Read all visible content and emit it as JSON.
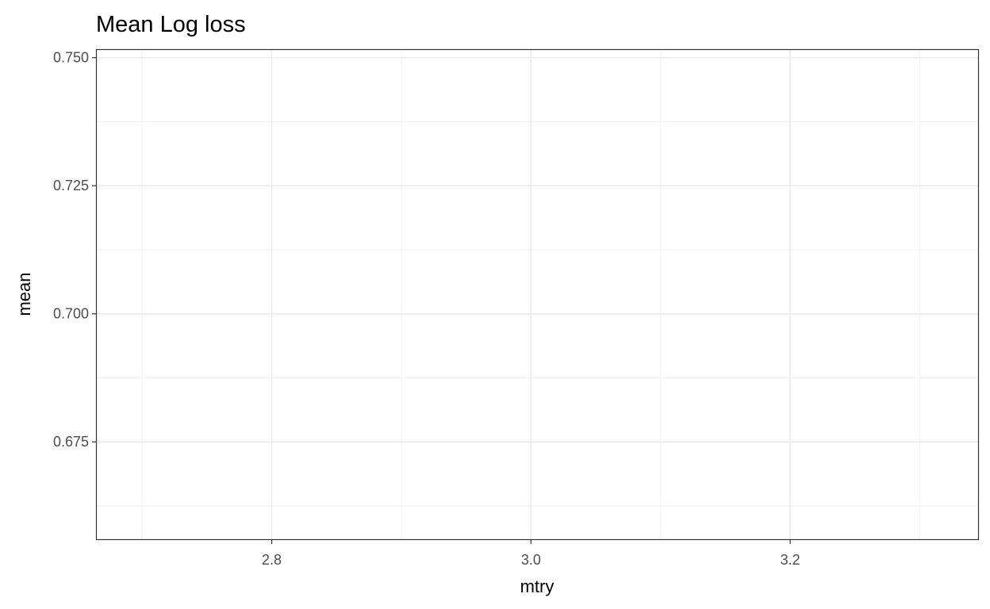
{
  "chart_data": {
    "type": "line",
    "title": "Mean Log loss",
    "xlabel": "mtry",
    "ylabel": "mean",
    "xlim": [
      2.665,
      3.345
    ],
    "ylim": [
      0.656,
      0.7515
    ],
    "x_ticks": [
      2.8,
      3.0,
      3.2
    ],
    "x_tick_labels": [
      "2.8",
      "3.0",
      "3.2"
    ],
    "x_minor_ticks": [
      2.7,
      2.9,
      3.1,
      3.3
    ],
    "y_ticks": [
      0.675,
      0.7,
      0.725,
      0.75
    ],
    "y_tick_labels": [
      "0.675",
      "0.700",
      "0.725",
      "0.750"
    ],
    "y_minor_ticks": [
      0.6625,
      0.6875,
      0.7125,
      0.7375
    ],
    "series": [],
    "grid": true,
    "legend": "none",
    "colors": {
      "background": "#ffffff",
      "panel_border": "#333333",
      "grid_major": "#ebebeb",
      "grid_minor": "#f2f2f2",
      "tick_text": "#4d4d4d",
      "title_text": "#000000"
    }
  }
}
